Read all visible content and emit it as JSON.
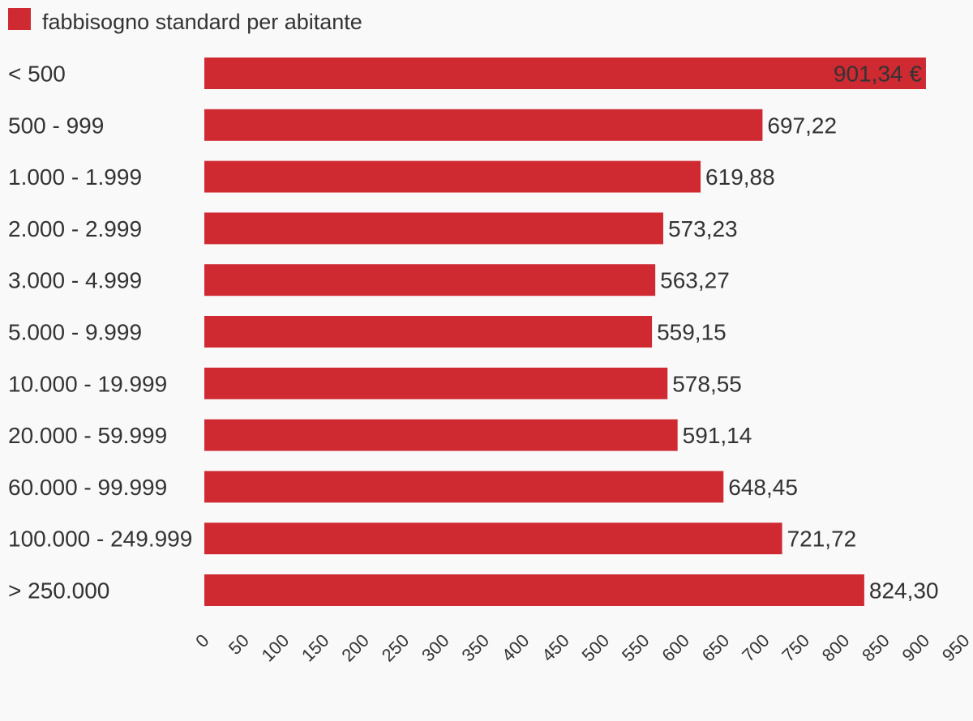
{
  "chart_data": {
    "type": "bar",
    "orientation": "horizontal",
    "legend": {
      "label": "fabbisogno standard per abitante",
      "placement": "top-left"
    },
    "series": [
      {
        "name": "fabbisogno standard per abitante",
        "color": "#cf2a32",
        "values": [
          901.34,
          697.22,
          619.88,
          573.23,
          563.27,
          559.15,
          578.55,
          591.14,
          648.45,
          721.72,
          824.3
        ],
        "value_labels": [
          "901,34 €",
          "697,22",
          "619,88",
          "573,23",
          "563,27",
          "559,15",
          "578,55",
          "591,14",
          "648,45",
          "721,72",
          "824,30"
        ]
      }
    ],
    "categories": [
      "< 500",
      "500 - 999",
      "1.000 - 1.999",
      "2.000 - 2.999",
      "3.000 - 4.999",
      "5.000 - 9.999",
      "10.000 - 19.999",
      "20.000 - 59.999",
      "60.000 - 99.999",
      "100.000 - 249.999",
      "> 250.000"
    ],
    "x_ticks": [
      "0",
      "50",
      "100",
      "150",
      "200",
      "250",
      "300",
      "350",
      "400",
      "450",
      "500",
      "550",
      "600",
      "650",
      "700",
      "750",
      "800",
      "850",
      "900",
      "950"
    ],
    "xlim": [
      0,
      950
    ],
    "grid": false
  }
}
